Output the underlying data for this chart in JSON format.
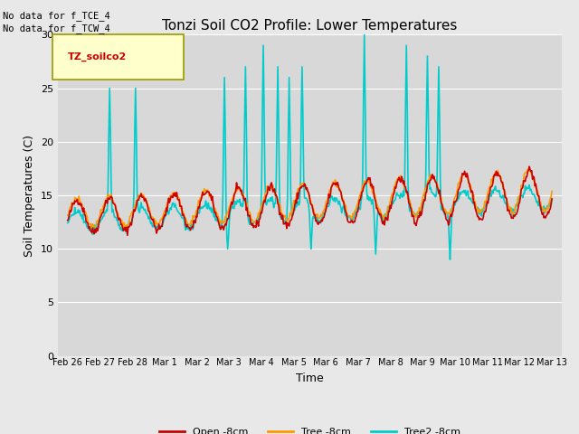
{
  "title": "Tonzi Soil CO2 Profile: Lower Temperatures",
  "ylabel": "Soil Temperatures (C)",
  "xlabel": "Time",
  "top_left_text": "No data for f_TCE_4\nNo data for f_TCW_4",
  "legend_label": "TZ_soilco2",
  "ylim": [
    0,
    30
  ],
  "yticks": [
    0,
    5,
    10,
    15,
    20,
    25,
    30
  ],
  "x_tick_labels": [
    "Feb 26",
    "Feb 27",
    "Feb 28",
    "Mar 1",
    "Mar 2",
    "Mar 3",
    "Mar 4",
    "Mar 5",
    "Mar 6",
    "Mar 7",
    "Mar 8",
    "Mar 9",
    "Mar 10",
    "Mar 11",
    "Mar 12",
    "Mar 13"
  ],
  "x_tick_positions": [
    0,
    1,
    2,
    3,
    4,
    5,
    6,
    7,
    8,
    9,
    10,
    11,
    12,
    13,
    14,
    15
  ],
  "bg_color": "#e8e8e8",
  "plot_bg_color": "#d8d8d8",
  "line_colors": {
    "open": "#cc0000",
    "tree": "#ff9900",
    "tree2": "#00cccc"
  },
  "line_width": 1.2,
  "spike_times": [
    1.3,
    2.1,
    4.85,
    5.5,
    6.05,
    6.5,
    6.85,
    7.25,
    9.2,
    10.5,
    11.15,
    11.5
  ],
  "spike_heights": [
    25,
    25,
    26,
    27,
    29,
    27,
    26,
    27,
    30,
    29,
    28,
    27
  ],
  "dip_times": [
    4.95,
    7.55,
    9.55,
    11.85
  ],
  "dip_values": [
    10,
    10,
    9.5,
    9
  ],
  "seed": 42,
  "n_points": 600
}
